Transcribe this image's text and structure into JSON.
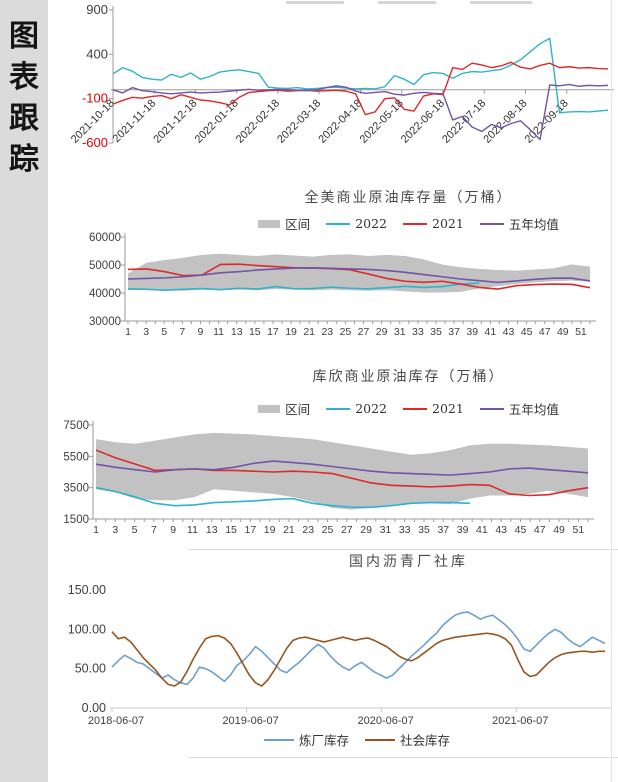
{
  "sidebar": {
    "chars": [
      "图",
      "表",
      "跟",
      "踪"
    ]
  },
  "colors": {
    "cyan": "#2FB3CC",
    "red": "#DC2A2A",
    "purple": "#7154A5",
    "band": "#C2C2C2",
    "blue": "#6D9FD0",
    "brown": "#96551F",
    "axis": "#9B9B9B",
    "axis_light": "#C8C8C8",
    "tick_text": "#3F3F3F",
    "negative_tick": "#E00000",
    "title": "#4A4A4A"
  },
  "chart_data": [
    {
      "type": "line",
      "title": "",
      "legend_clipped": true,
      "ylim": [
        -600,
        900
      ],
      "y_ticks": [
        900,
        400,
        -100,
        -600
      ],
      "x_tick_labels": [
        "2021-10-18",
        "2021-11-18",
        "2021-12-18",
        "2022-01-18",
        "2022-02-18",
        "2022-03-18",
        "2022-04-18",
        "2022-05-18",
        "2022-06-18",
        "2022-07-18",
        "2022-08-18",
        "2022-09-18"
      ],
      "grid": false,
      "series": [
        {
          "name": "",
          "color": "cyan",
          "values": [
            180,
            250,
            210,
            140,
            120,
            110,
            175,
            140,
            190,
            120,
            150,
            200,
            215,
            225,
            205,
            185,
            30,
            20,
            15,
            25,
            10,
            15,
            25,
            30,
            20,
            10,
            15,
            10,
            35,
            160,
            120,
            60,
            170,
            195,
            185,
            130,
            185,
            205,
            200,
            215,
            230,
            280,
            340,
            430,
            520,
            580,
            -260,
            -250,
            -245,
            -250,
            -240,
            -230
          ]
        },
        {
          "name": "",
          "color": "red",
          "values": [
            -160,
            -120,
            -85,
            -95,
            -75,
            -65,
            -100,
            -55,
            -85,
            -115,
            -125,
            -145,
            -170,
            -85,
            -30,
            -20,
            -10,
            -5,
            -15,
            -10,
            -5,
            -15,
            -10,
            -5,
            -15,
            -45,
            -280,
            -250,
            -100,
            -90,
            -220,
            -240,
            -70,
            -45,
            -55,
            250,
            230,
            300,
            280,
            250,
            270,
            310,
            255,
            235,
            275,
            300,
            250,
            260,
            245,
            250,
            240,
            235
          ]
        },
        {
          "name": "",
          "color": "purple",
          "values": [
            0,
            -35,
            25,
            -10,
            -20,
            -35,
            -45,
            -35,
            -25,
            -35,
            -30,
            -25,
            -15,
            -5,
            5,
            -5,
            0,
            5,
            0,
            -5,
            -10,
            0,
            25,
            45,
            30,
            -15,
            -40,
            -30,
            -20,
            -50,
            -60,
            -40,
            -30,
            -40,
            -45,
            -340,
            -300,
            -420,
            -470,
            -390,
            -430,
            -380,
            -350,
            -450,
            -560,
            55,
            45,
            60,
            40,
            50,
            45,
            50
          ]
        }
      ]
    },
    {
      "type": "line",
      "title": "全美商业原油库存量（万桶）",
      "ylim": [
        30000,
        60000
      ],
      "y_ticks": [
        60000,
        50000,
        40000,
        30000
      ],
      "x_tick_labels": [
        1,
        3,
        5,
        7,
        9,
        11,
        13,
        15,
        17,
        19,
        21,
        23,
        25,
        27,
        29,
        31,
        33,
        35,
        37,
        39,
        41,
        43,
        45,
        47,
        49,
        51
      ],
      "legend_position": "top",
      "band": {
        "name": "区间",
        "upper": [
          47000,
          50800,
          51800,
          52600,
          53600,
          54000,
          53600,
          53200,
          53800,
          53400,
          53000,
          53600,
          53800,
          53200,
          53600,
          53200,
          52000,
          50200,
          49200,
          48600,
          48200,
          48000,
          48400,
          48800,
          50200,
          49400
        ],
        "lower": [
          41000,
          41200,
          41000,
          40800,
          41200,
          41000,
          41200,
          41000,
          41400,
          41200,
          41000,
          41200,
          41000,
          40800,
          41000,
          40600,
          40200,
          40200,
          40400,
          41600,
          42400,
          43200,
          43800,
          44200,
          44400,
          44000
        ]
      },
      "series": [
        {
          "name": "2022",
          "color": "cyan",
          "values": [
            41500,
            41300,
            41000,
            41300,
            41600,
            41200,
            41700,
            41400,
            42300,
            41500,
            41600,
            42100,
            41700,
            41500,
            41900,
            42400,
            42000,
            42300,
            43200,
            43500
          ]
        },
        {
          "name": "2021",
          "color": "red",
          "values": [
            48400,
            48600,
            47600,
            46200,
            46400,
            50200,
            50300,
            49800,
            49400,
            49000,
            48900,
            48700,
            48300,
            46800,
            45200,
            44200,
            43800,
            44200,
            43200,
            42000,
            41400,
            42600,
            43000,
            43200,
            43100,
            41900
          ]
        },
        {
          "name": "五年均值",
          "color": "purple",
          "values": [
            45000,
            45200,
            45400,
            45800,
            46400,
            47200,
            47600,
            48200,
            48600,
            48900,
            49000,
            48800,
            48600,
            48400,
            48000,
            47400,
            46600,
            45800,
            45000,
            44400,
            43800,
            44300,
            44900,
            45300,
            45300,
            44300
          ]
        }
      ]
    },
    {
      "type": "line",
      "title": "库欣商业原油库存（万桶）",
      "ylim": [
        1500,
        7500
      ],
      "y_ticks": [
        7500,
        5500,
        3500,
        1500
      ],
      "x_tick_labels": [
        1,
        3,
        5,
        7,
        9,
        11,
        13,
        15,
        17,
        19,
        21,
        23,
        25,
        27,
        29,
        31,
        33,
        35,
        37,
        39,
        41,
        43,
        45,
        47,
        49,
        51
      ],
      "legend_position": "top",
      "band": {
        "name": "区间",
        "upper": [
          6600,
          6400,
          6300,
          6500,
          6700,
          6900,
          7000,
          6950,
          6900,
          6800,
          6700,
          6600,
          6400,
          6200,
          6000,
          5800,
          5600,
          5700,
          5900,
          6200,
          6300,
          6300,
          6250,
          6200,
          6100,
          6000
        ],
        "lower": [
          3400,
          3200,
          2800,
          2700,
          2700,
          2900,
          3400,
          3300,
          3200,
          3100,
          2900,
          2600,
          2200,
          2100,
          2200,
          2400,
          2500,
          2500,
          2450,
          2800,
          3000,
          3000,
          3100,
          3300,
          3100,
          2900
        ]
      },
      "series": [
        {
          "name": "2022",
          "color": "cyan",
          "values": [
            3500,
            3250,
            2900,
            2500,
            2350,
            2400,
            2550,
            2600,
            2650,
            2750,
            2800,
            2500,
            2350,
            2250,
            2250,
            2350,
            2500,
            2550,
            2550,
            2500
          ]
        },
        {
          "name": "2021",
          "color": "red",
          "values": [
            5900,
            5400,
            5000,
            4600,
            4650,
            4700,
            4600,
            4600,
            4550,
            4500,
            4550,
            4500,
            4400,
            4100,
            3800,
            3650,
            3600,
            3550,
            3600,
            3700,
            3650,
            3100,
            3000,
            3050,
            3300,
            3500
          ]
        },
        {
          "name": "五年均值",
          "color": "purple",
          "values": [
            5000,
            4800,
            4650,
            4500,
            4650,
            4700,
            4650,
            4800,
            5050,
            5200,
            5100,
            5000,
            4850,
            4700,
            4550,
            4450,
            4400,
            4350,
            4300,
            4400,
            4500,
            4700,
            4750,
            4650,
            4550,
            4450
          ]
        }
      ]
    },
    {
      "type": "line",
      "title": "国内沥青厂社库",
      "ylim": [
        0,
        150
      ],
      "y_ticks": [
        "150.00",
        "100.00",
        "50.00",
        "0.00"
      ],
      "x_tick_labels": [
        "2018-06-07",
        "2019-06-07",
        "2020-06-07",
        "2021-06-07"
      ],
      "legend_position": "bottom",
      "series": [
        {
          "name": "炼厂库存",
          "color": "blue",
          "values": [
            52,
            60,
            67,
            63,
            58,
            56,
            50,
            44,
            38,
            42,
            36,
            32,
            30,
            38,
            52,
            50,
            46,
            40,
            34,
            42,
            54,
            60,
            68,
            78,
            72,
            64,
            56,
            48,
            45,
            52,
            58,
            66,
            74,
            81,
            76,
            66,
            58,
            52,
            48,
            54,
            58,
            52,
            46,
            42,
            38,
            42,
            50,
            58,
            66,
            73,
            80,
            88,
            95,
            105,
            112,
            118,
            121,
            122,
            118,
            113,
            116,
            118,
            112,
            106,
            98,
            88,
            75,
            72,
            80,
            88,
            95,
            100,
            96,
            88,
            82,
            78,
            84,
            90,
            86,
            82
          ]
        },
        {
          "name": "社会库存",
          "color": "brown",
          "values": [
            97,
            88,
            90,
            84,
            74,
            64,
            56,
            48,
            38,
            30,
            28,
            33,
            46,
            62,
            76,
            88,
            91,
            92,
            89,
            82,
            70,
            56,
            42,
            32,
            28,
            36,
            48,
            62,
            76,
            86,
            89,
            90,
            88,
            86,
            84,
            86,
            88,
            90,
            88,
            86,
            88,
            89,
            86,
            82,
            78,
            72,
            66,
            62,
            60,
            64,
            70,
            76,
            82,
            86,
            88,
            90,
            91,
            92,
            93,
            94,
            95,
            94,
            92,
            88,
            80,
            62,
            46,
            40,
            42,
            50,
            58,
            64,
            68,
            70,
            71,
            72,
            72,
            71,
            72,
            72
          ]
        }
      ]
    }
  ]
}
